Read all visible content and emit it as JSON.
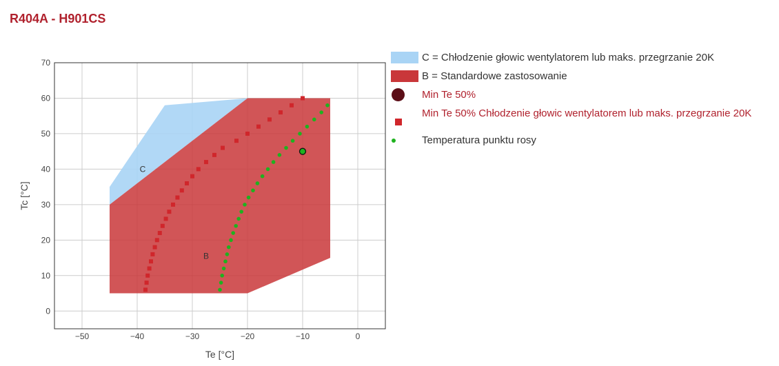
{
  "header": {
    "title": "R404A - H901CS"
  },
  "chart_data": {
    "type": "area",
    "xlabel": "Te [°C]",
    "ylabel": "Tc [°C]",
    "xlim": [
      -55,
      5
    ],
    "ylim": [
      -5,
      70
    ],
    "xticks": [
      -50,
      -40,
      -30,
      -20,
      -10,
      0
    ],
    "yticks": [
      0,
      10,
      20,
      30,
      40,
      50,
      60,
      70
    ],
    "xtick_labels": [
      "−50",
      "−40",
      "−30",
      "−20",
      "−10",
      "0"
    ],
    "ytick_labels": [
      "0",
      "10",
      "20",
      "30",
      "40",
      "50",
      "60",
      "70"
    ],
    "grid": true,
    "legend_position": "right",
    "colors": {
      "region_c": "#a9d4f5",
      "region_b": "#c9373a",
      "min_te_marker": "#5c0e17",
      "squares": "#d0262b",
      "dew_points": "#1fb21f",
      "grid": "#cccccc",
      "axis": "#333333"
    },
    "regions": [
      {
        "name": "C = Chłodzenie głowic wentylatorem lub maks. przegrzanie 20K",
        "label": "C",
        "label_at": [
          -39,
          40
        ],
        "polygon": [
          [
            -45,
            35
          ],
          [
            -35,
            58
          ],
          [
            -20,
            60
          ],
          [
            -45,
            30
          ]
        ]
      },
      {
        "name": "B = Standardowe zastosowanie",
        "label": "B",
        "label_at": [
          -27.5,
          15.5
        ],
        "polygon": [
          [
            -45,
            5
          ],
          [
            -45,
            30
          ],
          [
            -20,
            60
          ],
          [
            -5,
            60
          ],
          [
            -5,
            15
          ],
          [
            -20,
            5
          ]
        ]
      }
    ],
    "series": [
      {
        "name": "Min Te 50%",
        "marker": "circle-large",
        "points": [
          [
            -10,
            45
          ]
        ]
      },
      {
        "name": "Min Te 50% Chłodzenie głowic wentylatorem lub maks. przegrzanie 20K",
        "marker": "square",
        "points": [
          [
            -38.5,
            6
          ],
          [
            -38.3,
            8
          ],
          [
            -38.1,
            10
          ],
          [
            -37.8,
            12
          ],
          [
            -37.5,
            14
          ],
          [
            -37.2,
            16
          ],
          [
            -36.8,
            18
          ],
          [
            -36.4,
            20
          ],
          [
            -35.9,
            22
          ],
          [
            -35.4,
            24
          ],
          [
            -34.8,
            26
          ],
          [
            -34.2,
            28
          ],
          [
            -33.5,
            30
          ],
          [
            -32.7,
            32
          ],
          [
            -31.9,
            34
          ],
          [
            -31.0,
            36
          ],
          [
            -30.0,
            38
          ],
          [
            -28.9,
            40
          ],
          [
            -27.5,
            42
          ],
          [
            -26.0,
            44
          ],
          [
            -24.5,
            46
          ],
          [
            -22.0,
            48
          ],
          [
            -20.0,
            50
          ],
          [
            -18.0,
            52
          ],
          [
            -16.0,
            54
          ],
          [
            -14.0,
            56
          ],
          [
            -12.0,
            58
          ],
          [
            -10.0,
            60
          ]
        ]
      },
      {
        "name": "Temperatura punktu rosy",
        "marker": "dot",
        "points": [
          [
            -25.0,
            6
          ],
          [
            -24.8,
            8
          ],
          [
            -24.6,
            10
          ],
          [
            -24.3,
            12
          ],
          [
            -24.0,
            14
          ],
          [
            -23.7,
            16
          ],
          [
            -23.4,
            18
          ],
          [
            -23.0,
            20
          ],
          [
            -22.6,
            22
          ],
          [
            -22.1,
            24
          ],
          [
            -21.6,
            26
          ],
          [
            -21.1,
            28
          ],
          [
            -20.5,
            30
          ],
          [
            -19.8,
            32
          ],
          [
            -19.0,
            34
          ],
          [
            -18.2,
            36
          ],
          [
            -17.3,
            38
          ],
          [
            -16.3,
            40
          ],
          [
            -15.3,
            42
          ],
          [
            -14.2,
            44
          ],
          [
            -13.0,
            46
          ],
          [
            -11.8,
            48
          ],
          [
            -10.5,
            50
          ],
          [
            -9.2,
            52
          ],
          [
            -7.9,
            54
          ],
          [
            -6.6,
            56
          ],
          [
            -5.5,
            58
          ]
        ]
      }
    ]
  }
}
